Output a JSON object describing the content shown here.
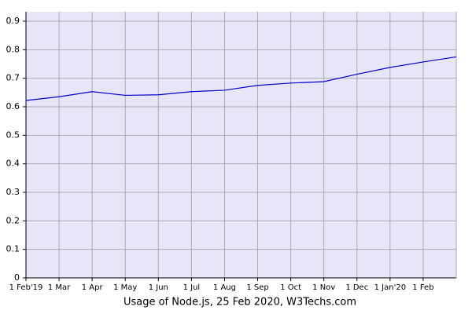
{
  "chart_data": {
    "type": "line",
    "title": "Usage of Node.js, 25 Feb 2020, W3Techs.com",
    "categories": [
      "1 Feb'19",
      "1 Mar",
      "1 Apr",
      "1 May",
      "1 Jun",
      "1 Jul",
      "1 Aug",
      "1 Sep",
      "1 Oct",
      "1 Nov",
      "1 Dec",
      "1 Jan'20",
      "1 Feb",
      null
    ],
    "series": [
      {
        "color": "#0000cc",
        "values": [
          0.622,
          0.635,
          0.653,
          0.64,
          0.642,
          0.653,
          0.658,
          0.675,
          0.683,
          0.688,
          0.714,
          0.738,
          0.757,
          0.775
        ]
      }
    ],
    "ylim": [
      0,
      0.933
    ],
    "yticks": [
      0,
      0.1,
      0.2,
      0.3,
      0.4,
      0.5,
      0.6,
      0.7,
      0.8,
      0.9
    ],
    "grid": true
  }
}
